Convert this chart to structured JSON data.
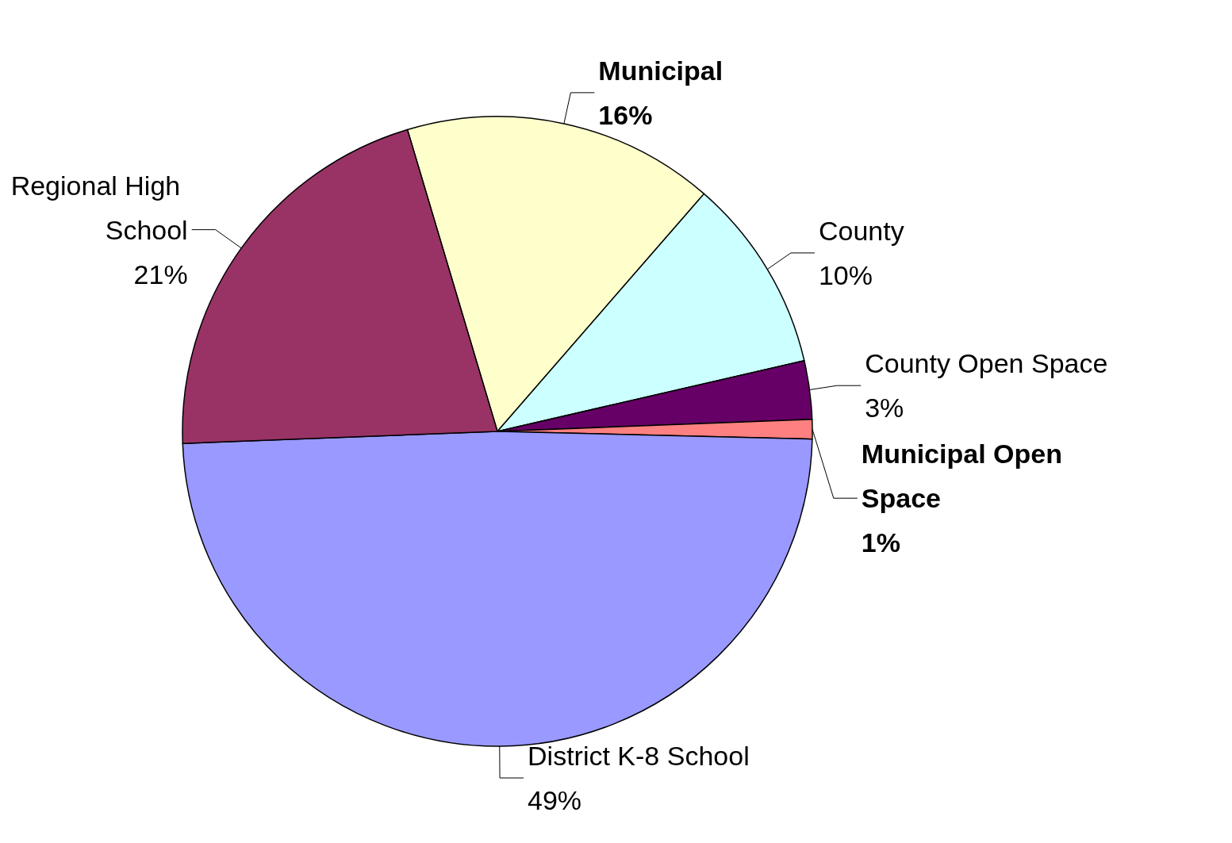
{
  "chart_data": {
    "type": "pie",
    "categories": [
      "Municipal",
      "County",
      "County Open Space",
      "Municipal Open Space",
      "District K-8 School",
      "Regional High School"
    ],
    "values": [
      16,
      10,
      3,
      1,
      49,
      21
    ],
    "value_labels": [
      "16%",
      "10%",
      "3%",
      "1%",
      "49%",
      "21%"
    ],
    "colors": [
      "#ffffcc",
      "#ccffff",
      "#660066",
      "#ff8080",
      "#9999ff",
      "#993366"
    ],
    "legend": false
  }
}
